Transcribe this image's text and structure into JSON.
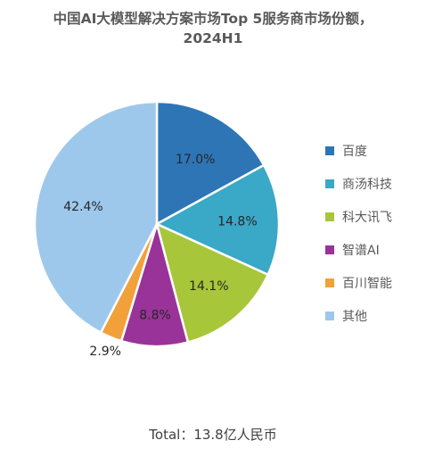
{
  "title_line1": "中国AI大模型解决方案市场Top 5服务商市场份额，",
  "title_line2": "2024H1",
  "total_text": "Total：13.8亿人民币",
  "chart_data": {
    "type": "pie",
    "title": "中国AI大模型解决方案市场Top 5服务商市场份额，2024H1",
    "legend_position": "right",
    "categories": [
      "百度",
      "商汤科技",
      "科大讯飞",
      "智谱AI",
      "百川智能",
      "其他"
    ],
    "values": [
      17.0,
      14.8,
      14.1,
      8.8,
      2.9,
      42.4
    ],
    "data_labels": [
      "17.0%",
      "14.8%",
      "14.1%",
      "8.8%",
      "2.9%",
      "42.4%"
    ],
    "colors": [
      "#2E75B6",
      "#3AA8C7",
      "#A8C63A",
      "#993399",
      "#F2A03A",
      "#9DC8EC"
    ],
    "annotation": "Total：13.8亿人民币"
  }
}
